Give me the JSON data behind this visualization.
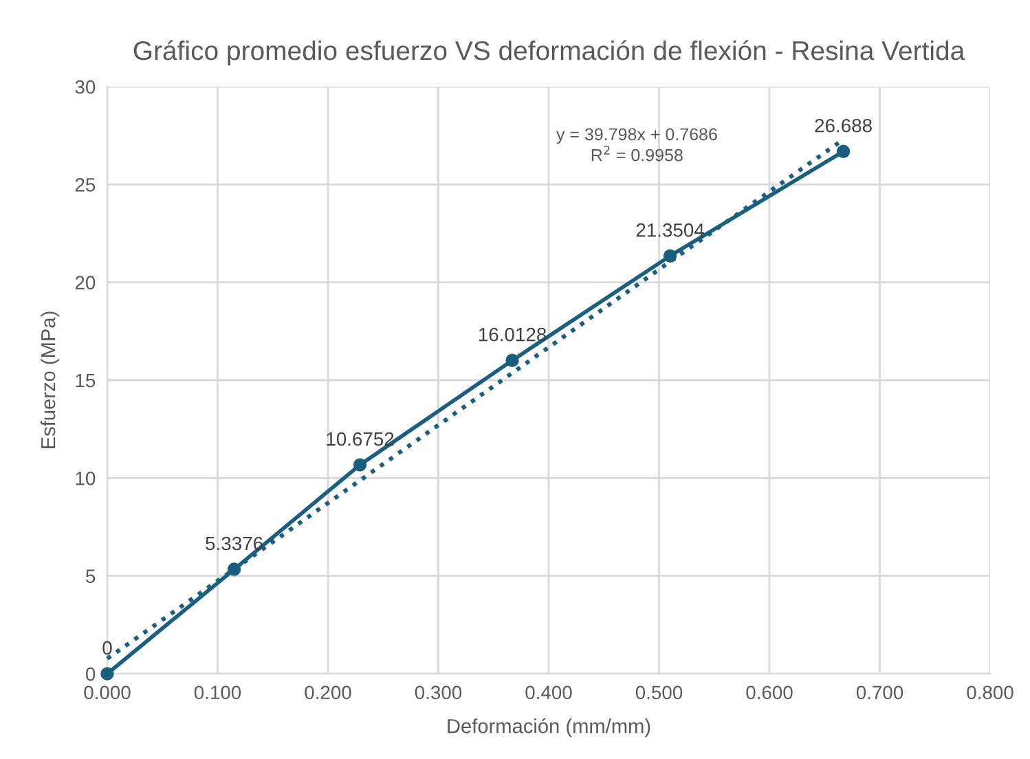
{
  "chart_data": {
    "type": "line",
    "title": "Gráfico promedio esfuerzo VS deformación de flexión - Resina Vertida",
    "xlabel": "Deformación (mm/mm)",
    "ylabel": "Esfuerzo (MPa)",
    "x": [
      0,
      0.115,
      0.229,
      0.367,
      0.51,
      0.667
    ],
    "series": [
      {
        "color": "#1b5e7e",
        "marker": "circle",
        "line_style": "solid",
        "values": [
          0,
          5.3376,
          10.6752,
          16.0128,
          21.3504,
          26.688
        ],
        "value_labels": [
          "0",
          "5.3376",
          "10.6752",
          "16.0128",
          "21.3504",
          "26.688"
        ]
      },
      {
        "color": "#1b5e7e",
        "marker": "none",
        "line_style": "dotted",
        "x": [
          0,
          0.667
        ],
        "values": [
          0.77,
          27.3
        ]
      }
    ],
    "annotations": [
      "y = 39.798x + 0.7686\nR$^{2}$ = 0.9958"
    ],
    "xlim": [
      0,
      0.8
    ],
    "xticks": [
      {
        "value": 0,
        "label": "0.000"
      },
      {
        "value": 0.1,
        "label": "0.100"
      },
      {
        "value": 0.2,
        "label": "0.200"
      },
      {
        "value": 0.3,
        "label": "0.300"
      },
      {
        "value": 0.4,
        "label": "0.400"
      },
      {
        "value": 0.5,
        "label": "0.500"
      },
      {
        "value": 0.6,
        "label": "0.600"
      },
      {
        "value": 0.7,
        "label": "0.700"
      },
      {
        "value": 0.8,
        "label": "0.800"
      }
    ],
    "ylim": [
      0,
      30
    ],
    "yticks": [
      0,
      5,
      10,
      15,
      20,
      25,
      30
    ],
    "grid": true
  }
}
